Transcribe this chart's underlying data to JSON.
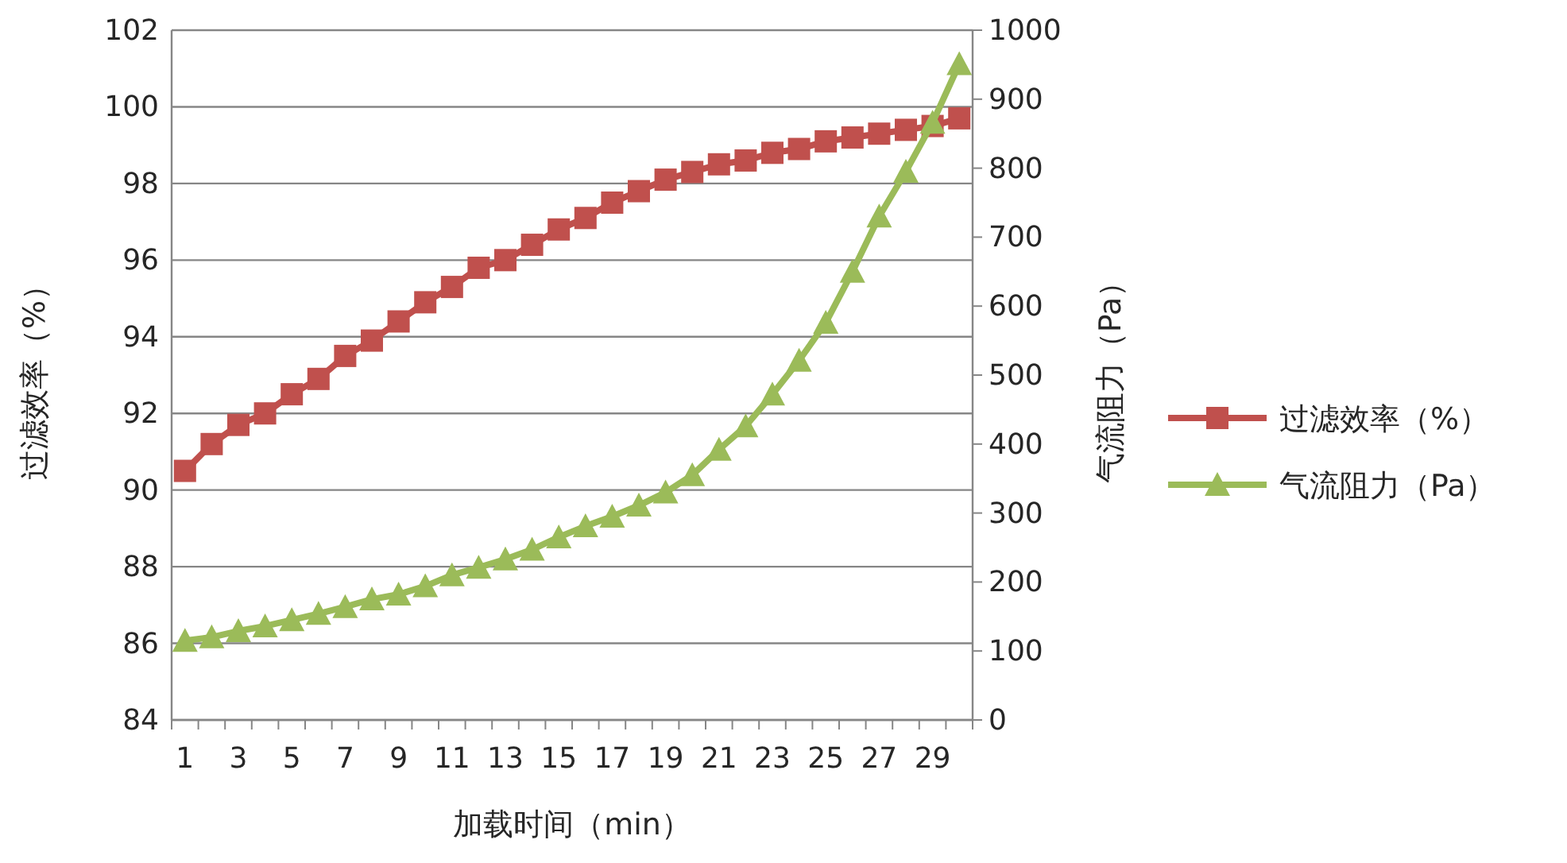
{
  "chart_data": {
    "type": "line",
    "xlabel": "加载时间（min）",
    "ylabel": "过滤效率（%）",
    "y2label": "气流阻力（Pa）",
    "x": [
      1,
      2,
      3,
      4,
      5,
      6,
      7,
      8,
      9,
      10,
      11,
      12,
      13,
      14,
      15,
      16,
      17,
      18,
      19,
      20,
      21,
      22,
      23,
      24,
      25,
      26,
      27,
      28,
      29,
      30
    ],
    "xlim": [
      0.5,
      30.5
    ],
    "xticks": [
      1,
      3,
      5,
      7,
      9,
      11,
      13,
      15,
      17,
      19,
      21,
      23,
      25,
      27,
      29
    ],
    "series": [
      {
        "name": "过滤效率（%）",
        "color": "#c0504d",
        "marker": "square",
        "values": [
          90.5,
          91.2,
          91.7,
          92.0,
          92.5,
          92.9,
          93.5,
          93.9,
          94.4,
          94.9,
          95.3,
          95.8,
          96.0,
          96.4,
          96.8,
          97.1,
          97.5,
          97.8,
          98.1,
          98.3,
          98.5,
          98.6,
          98.8,
          98.9,
          99.1,
          99.2,
          99.3,
          99.4,
          99.5,
          99.7
        ]
      },
      {
        "name": "气流阻力（Pa）",
        "color": "#9bbb59",
        "marker": "triangle",
        "axis": "y2",
        "values": [
          115,
          120,
          129,
          136,
          145,
          154,
          164,
          175,
          182,
          194,
          210,
          221,
          233,
          247,
          265,
          281,
          295,
          311,
          330,
          355,
          392,
          426,
          472,
          521,
          576,
          650,
          730,
          795,
          866,
          951
        ]
      }
    ],
    "ylim": [
      84,
      102
    ],
    "yticks": [
      84,
      86,
      88,
      90,
      92,
      94,
      96,
      98,
      100,
      102
    ],
    "y2lim": [
      0,
      1000
    ],
    "y2ticks": [
      0,
      100,
      200,
      300,
      400,
      500,
      600,
      700,
      800,
      900,
      1000
    ],
    "grid": "y",
    "legend": "right"
  }
}
